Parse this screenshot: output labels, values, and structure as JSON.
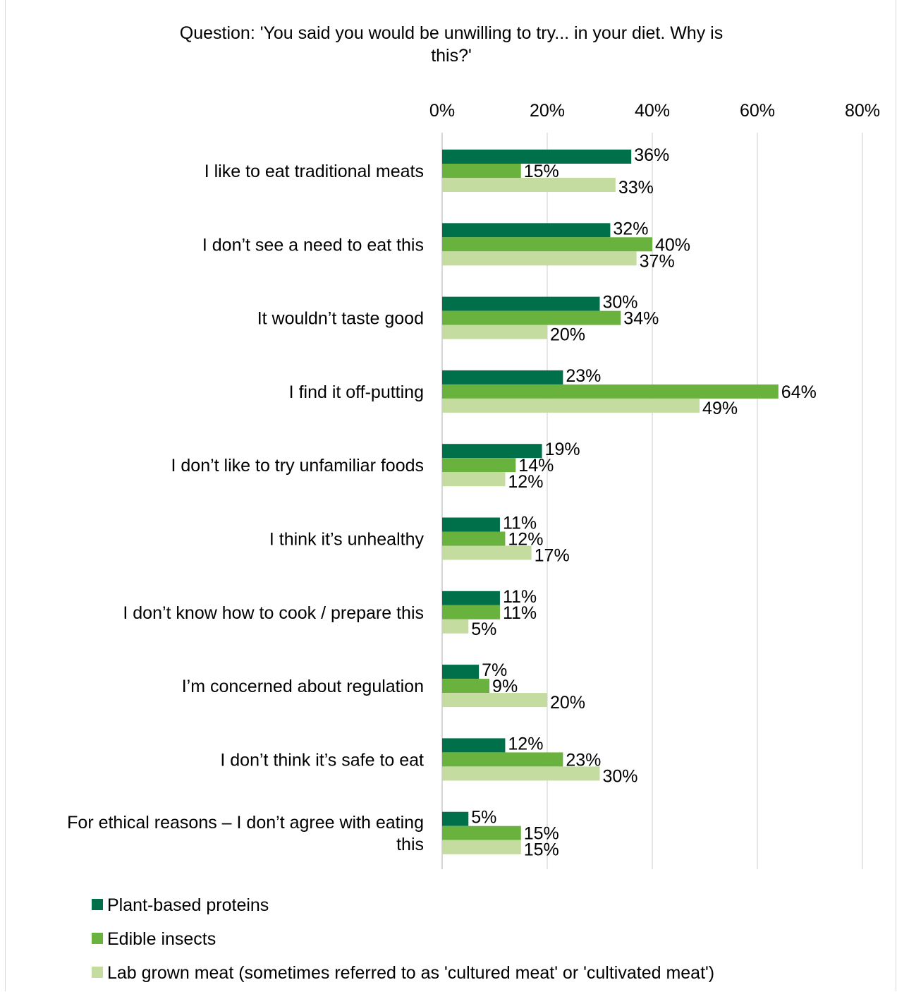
{
  "chart_data": {
    "type": "bar",
    "orientation": "horizontal",
    "title": "Question: 'You said you would be unwilling to try... in your diet. Why is this?'",
    "title_lines": [
      "Question: 'You said you would be unwilling to try... in your diet. Why is",
      "this?'"
    ],
    "x_axis_position": "top",
    "xlim": [
      0,
      80
    ],
    "xticks": [
      0,
      20,
      40,
      60,
      80
    ],
    "xtick_labels": [
      "0%",
      "20%",
      "40%",
      "60%",
      "80%"
    ],
    "grid": true,
    "legend_position": "bottom",
    "categories": [
      "I like to eat traditional meats",
      "I don’t see a need to eat this",
      "It wouldn’t taste good",
      "I find it off-putting",
      "I don’t like to try unfamiliar foods",
      "I think it’s unhealthy",
      "I don’t know how to cook / prepare this",
      "I’m concerned about regulation",
      "I don’t think it’s safe to eat",
      "For ethical reasons – I don’t agree with eating this"
    ],
    "category_lines": [
      [
        "I like to eat traditional meats"
      ],
      [
        "I don’t see a need to eat this"
      ],
      [
        "It wouldn’t taste good"
      ],
      [
        "I find it off-putting"
      ],
      [
        "I don’t like to try unfamiliar foods"
      ],
      [
        "I think it’s unhealthy"
      ],
      [
        "I don’t know how to cook / prepare this"
      ],
      [
        "I’m concerned about regulation"
      ],
      [
        "I don’t think it’s safe to eat"
      ],
      [
        "For ethical reasons – I don’t agree with eating",
        "this"
      ]
    ],
    "series": [
      {
        "name": "Plant-based proteins",
        "color": "#00704a",
        "values": [
          36,
          32,
          30,
          23,
          19,
          11,
          11,
          7,
          12,
          5
        ]
      },
      {
        "name": "Edible insects",
        "color": "#6ab23e",
        "values": [
          15,
          40,
          34,
          64,
          14,
          12,
          11,
          9,
          23,
          15
        ]
      },
      {
        "name": "Lab grown meat (sometimes referred to as 'cultured meat' or 'cultivated meat')",
        "color": "#c5dca0",
        "values": [
          33,
          37,
          20,
          49,
          12,
          17,
          5,
          20,
          30,
          15
        ]
      }
    ],
    "value_suffix": "%"
  }
}
